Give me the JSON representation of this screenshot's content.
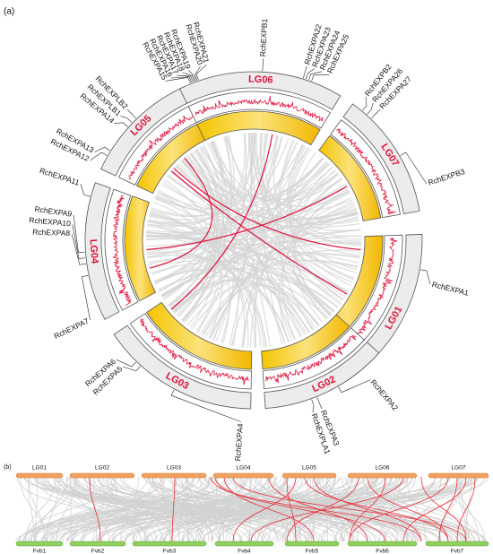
{
  "panel_a": {
    "label": "(a)",
    "chromosomes": [
      {
        "name": "LG01",
        "genes": [
          "RchEXPA1"
        ]
      },
      {
        "name": "LG02",
        "genes": [
          "RchEXPA2",
          "RchEXPA3",
          "RchEXPLA1"
        ]
      },
      {
        "name": "LG03",
        "genes": [
          "RchEXPA4",
          "RchEXPA5",
          "RchEXPA6"
        ]
      },
      {
        "name": "LG04",
        "genes": [
          "RchEXPA7",
          "RchEXPA8",
          "RchEXPA10",
          "RchEXPA9",
          "RchEXPA11"
        ]
      },
      {
        "name": "LG05",
        "genes": [
          "RchEXPA12",
          "RchEXPA13",
          "RchEXPA14",
          "RchEXPLB1",
          "RchEXPLB2"
        ]
      },
      {
        "name": "LG06",
        "genes": [
          "RchEXPA15",
          "RchEXPA16",
          "RchEXPA17",
          "RchEXPA18",
          "RchEXPA19",
          "RchEXPA20",
          "RchEXPA21",
          "RchEXPB1",
          "RchEXPA22",
          "RchEXPA23",
          "RchEXPA24",
          "RchEXPA25"
        ]
      },
      {
        "name": "LG07",
        "genes": [
          "RchEXPB2",
          "RchEXPA26",
          "RchEXPA27",
          "RchEXPB3"
        ]
      }
    ]
  },
  "panel_b": {
    "label": "(b)",
    "top": [
      "LG01",
      "LG02",
      "LG03",
      "LG04",
      "LG05",
      "LG06",
      "LG07"
    ],
    "bottom": [
      "Fvb1",
      "Fvb2",
      "Fvb3",
      "Fvb4",
      "Fvb5",
      "Fvb6",
      "Fvb7"
    ]
  }
}
